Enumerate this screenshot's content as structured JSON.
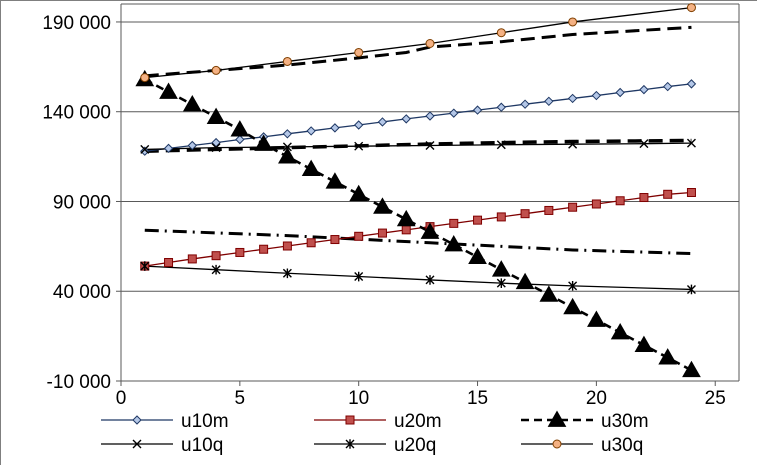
{
  "chart_data": {
    "type": "line",
    "title": "",
    "xlabel": "",
    "ylabel": "",
    "xlim": [
      0,
      26
    ],
    "ylim": [
      -10000,
      200000
    ],
    "x_ticks": [
      0,
      5,
      10,
      15,
      20,
      25
    ],
    "y_ticks": [
      -10000,
      40000,
      90000,
      140000,
      190000
    ],
    "x_tick_labels": [
      "0",
      "5",
      "10",
      "15",
      "20",
      "25"
    ],
    "y_tick_labels": [
      "-10 000",
      "40 000",
      "90 000",
      "140 000",
      "190 000"
    ],
    "grid": "horizontal",
    "legend_position": "bottom",
    "series": [
      {
        "name": "u10m",
        "x": [
          1,
          2,
          3,
          4,
          5,
          6,
          7,
          8,
          9,
          10,
          11,
          12,
          13,
          14,
          15,
          16,
          17,
          18,
          19,
          20,
          21,
          22,
          23,
          24
        ],
        "y": [
          118000,
          119600,
          121200,
          122800,
          124500,
          126000,
          127700,
          129300,
          131000,
          132600,
          134300,
          136000,
          137600,
          139200,
          140900,
          142500,
          144200,
          145800,
          147400,
          149000,
          150700,
          152300,
          154000,
          155500
        ],
        "color": "#1f3864",
        "marker": "diamond",
        "markerFill": "#b4c7e7",
        "dash": "",
        "width": 1.3
      },
      {
        "name": "u20m",
        "x": [
          1,
          2,
          3,
          4,
          5,
          6,
          7,
          8,
          9,
          10,
          11,
          12,
          13,
          14,
          15,
          16,
          17,
          18,
          19,
          20,
          21,
          22,
          23,
          24
        ],
        "y": [
          54000,
          56000,
          58000,
          59800,
          61600,
          63400,
          65200,
          67000,
          68800,
          70600,
          72400,
          74200,
          76000,
          77800,
          79600,
          81400,
          83200,
          85000,
          86800,
          88600,
          90400,
          92200,
          94000,
          95000
        ],
        "color": "#7f0000",
        "marker": "square",
        "markerFill": "#c0504d",
        "dash": "",
        "width": 1.3
      },
      {
        "name": "u30m",
        "x": [
          1,
          2,
          3,
          4,
          5,
          6,
          7,
          8,
          9,
          10,
          11,
          12,
          13,
          14,
          15,
          16,
          17,
          18,
          19,
          20,
          21,
          22,
          23,
          24
        ],
        "y": [
          158000,
          151000,
          144000,
          137000,
          130000,
          122000,
          115000,
          108000,
          101000,
          94000,
          87000,
          80000,
          73000,
          66000,
          59000,
          52000,
          45000,
          38000,
          31000,
          24000,
          17000,
          10000,
          3000,
          -4000
        ],
        "color": "#000000",
        "marker": "triangle",
        "markerFill": "#000000",
        "dash": "8,5",
        "width": 2.6
      },
      {
        "name": "u10q",
        "x": [
          1,
          4,
          7,
          10,
          13,
          16,
          19,
          22,
          24
        ],
        "y": [
          119000,
          120000,
          120400,
          120800,
          121200,
          121600,
          121900,
          122200,
          122500
        ],
        "color": "#000000",
        "marker": "x",
        "markerFill": "none",
        "dash": "",
        "width": 1.3
      },
      {
        "name": "u20q",
        "x": [
          1,
          4,
          7,
          10,
          13,
          16,
          19,
          24
        ],
        "y": [
          54000,
          52000,
          50000,
          48200,
          46300,
          44500,
          43000,
          41000
        ],
        "color": "#000000",
        "marker": "star",
        "markerFill": "none",
        "dash": "",
        "width": 1.3
      },
      {
        "name": "u30q",
        "x": [
          1,
          4,
          7,
          10,
          13,
          16,
          19,
          24
        ],
        "y": [
          159000,
          163000,
          168000,
          173000,
          178000,
          184000,
          190000,
          198000
        ],
        "color": "#000000",
        "marker": "circle",
        "markerFill": "#f4b183",
        "dash": "",
        "width": 1.3
      }
    ],
    "extra_lines": [
      {
        "x": [
          1,
          4,
          7,
          10,
          12,
          13,
          16,
          19,
          24
        ],
        "y": [
          160000,
          163000,
          166000,
          170000,
          173000,
          176000,
          179000,
          183000,
          187000
        ],
        "color": "#000000",
        "dash": "14,7",
        "width": 3
      },
      {
        "x": [
          1,
          4,
          7,
          10,
          13,
          16,
          19,
          24
        ],
        "y": [
          118000,
          119000,
          120000,
          121000,
          122000,
          122800,
          123400,
          124000
        ],
        "color": "#000000",
        "dash": "14,7",
        "width": 3.5
      },
      {
        "x": [
          1,
          4,
          7,
          10,
          13,
          16,
          19,
          24
        ],
        "y": [
          74000,
          72500,
          71000,
          69000,
          67000,
          65000,
          63000,
          61000
        ],
        "color": "#000000",
        "dash": "14,6,2,6",
        "width": 3
      }
    ]
  }
}
